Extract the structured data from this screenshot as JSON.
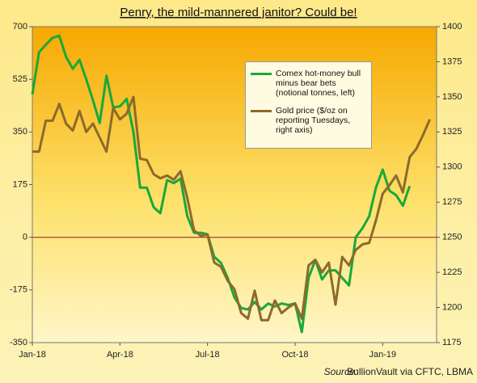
{
  "chart_data": {
    "type": "line",
    "title": "Penry, the mild-mannered janitor? Could be!",
    "source_label": "Source:",
    "source": "BullionVault via CFTC, LBMA",
    "categories": [
      "Jan-18",
      null,
      null,
      null,
      null,
      null,
      null,
      null,
      null,
      null,
      null,
      null,
      null,
      "Apr-18",
      null,
      null,
      null,
      null,
      null,
      null,
      null,
      null,
      null,
      null,
      null,
      null,
      "Jul-18",
      null,
      null,
      null,
      null,
      null,
      null,
      null,
      null,
      null,
      null,
      null,
      null,
      "Oct-18",
      null,
      null,
      null,
      null,
      null,
      null,
      null,
      null,
      null,
      null,
      null,
      null,
      "Jan-19",
      null,
      null,
      null,
      null,
      null,
      null,
      null
    ],
    "series": [
      {
        "name": "Comex hot-money bull minus bear bets (notional tonnes, left)",
        "color": "#1aa83a",
        "axis": "y",
        "values": [
          475,
          615,
          640,
          663,
          670,
          600,
          560,
          590,
          525,
          455,
          380,
          537,
          432,
          435,
          460,
          350,
          165,
          165,
          100,
          80,
          190,
          180,
          195,
          70,
          15,
          15,
          10,
          -65,
          -85,
          -135,
          -200,
          -235,
          -240,
          -215,
          -240,
          -220,
          -230,
          -220,
          -225,
          -220,
          -315,
          -135,
          -75,
          -140,
          -110,
          -110,
          -135,
          -160,
          0,
          30,
          70,
          165,
          225,
          155,
          140,
          105,
          170,
          null,
          null,
          null
        ]
      },
      {
        "name": "Gold price ($/oz on reporting Tuesdays, right axis)",
        "color": "#8c6a2c",
        "axis": "y2",
        "values": [
          1311,
          1311,
          1333,
          1333,
          1345,
          1331,
          1326,
          1340,
          1325,
          1331,
          1321,
          1311,
          1342,
          1334,
          1338,
          1350,
          1306,
          1305,
          1295,
          1292,
          1294,
          1291,
          1297,
          1278,
          1255,
          1251,
          1252,
          1232,
          1229,
          1219,
          1213,
          1196,
          1192,
          1212,
          1191,
          1191,
          1205,
          1196,
          1200,
          1203,
          1192,
          1230,
          1234,
          1225,
          1232,
          1202,
          1236,
          1230,
          1241,
          1245,
          1246,
          1262,
          1281,
          1287,
          1294,
          1282,
          1307,
          1313,
          1323,
          1334
        ]
      }
    ],
    "ylim": [
      -350,
      700
    ],
    "yticks": [
      -350,
      -175,
      0,
      175,
      350,
      525,
      700
    ],
    "y2lim": [
      1175,
      1400
    ],
    "y2ticks": [
      1175,
      1200,
      1225,
      1250,
      1275,
      1300,
      1325,
      1350,
      1375,
      1400
    ],
    "zero_line_color": "#a0302a"
  }
}
